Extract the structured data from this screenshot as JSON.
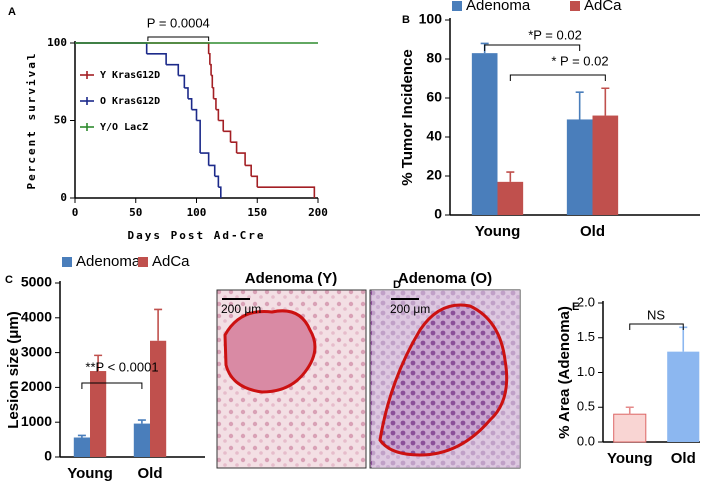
{
  "chart_data": [
    {
      "type": "line",
      "label": "A",
      "xlabel": "Days Post Ad-Cre",
      "ylabel": "Percent survival",
      "annotation": "P = 0.0004",
      "xlim": [
        0,
        200
      ],
      "xticks": [
        0,
        50,
        100,
        150,
        200
      ],
      "ylim": [
        0,
        100
      ],
      "yticks": [
        0,
        50,
        100
      ],
      "series": [
        {
          "name": "Y KrasG12D",
          "color": "#a31f24",
          "x": [
            0,
            110,
            111,
            112,
            113,
            114,
            116,
            118,
            122,
            128,
            133,
            140,
            145,
            150,
            197
          ],
          "values": [
            100,
            93,
            86,
            79,
            71,
            64,
            57,
            50,
            43,
            36,
            29,
            21,
            14,
            7,
            0
          ]
        },
        {
          "name": "O KrasG12D",
          "color": "#1c2a8a",
          "x": [
            0,
            59,
            75,
            85,
            90,
            93,
            96,
            100,
            103,
            110,
            115,
            118,
            120
          ],
          "values": [
            100,
            93,
            86,
            79,
            71,
            64,
            57,
            50,
            29,
            21,
            14,
            7,
            0
          ]
        },
        {
          "name": "Y/O LacZ",
          "color": "#2e8b2e",
          "x": [
            0,
            200
          ],
          "values": [
            100,
            100
          ]
        }
      ]
    },
    {
      "type": "bar",
      "label": "B",
      "ylabel": "% Tumor Incidence",
      "annotations": [
        "*P = 0.02",
        "* P = 0.02"
      ],
      "categories": [
        "Young",
        "Old"
      ],
      "ylim": [
        0,
        100
      ],
      "yticks": [
        0,
        20,
        40,
        60,
        80,
        100
      ],
      "series": [
        {
          "name": "Adenoma",
          "color": "#4a7ebb",
          "values": [
            83,
            49
          ],
          "errors": [
            5,
            14
          ]
        },
        {
          "name": "AdCa",
          "color": "#c0504d",
          "values": [
            17,
            51
          ],
          "errors": [
            5,
            14
          ]
        }
      ]
    },
    {
      "type": "bar",
      "label": "C",
      "ylabel": "Lesion size (μm)",
      "annotations": [
        "**P < 0.0001"
      ],
      "categories": [
        "Young",
        "Old"
      ],
      "ylim": [
        0,
        5000
      ],
      "yticks": [
        0,
        1000,
        2000,
        3000,
        4000,
        5000
      ],
      "series": [
        {
          "name": "Adenoma",
          "color": "#4a7ebb",
          "values": [
            560,
            960
          ],
          "errors": [
            60,
            100
          ]
        },
        {
          "name": "AdCa",
          "color": "#c0504d",
          "values": [
            2470,
            3340
          ],
          "errors": [
            450,
            900
          ]
        }
      ]
    },
    {
      "type": "bar",
      "label": "E",
      "ylabel": "% Area (Adenoma)",
      "annotations": [
        "NS"
      ],
      "categories": [
        "Young",
        "Old"
      ],
      "ylim": [
        0,
        2
      ],
      "yticks": [
        {
          "value": 0,
          "label": "0.0"
        },
        {
          "value": 0.5,
          "label": "0.5"
        },
        {
          "value": 1,
          "label": "1.0"
        },
        {
          "value": 1.5,
          "label": "1.5"
        },
        {
          "value": 2,
          "label": "2.0"
        }
      ],
      "series": [
        {
          "colors": [
            "#f9d5d3",
            "#8cb7f0"
          ],
          "values": [
            0.4,
            1.3
          ],
          "errors": [
            0.1,
            0.35
          ]
        }
      ]
    }
  ],
  "images": {
    "label": "D",
    "panels": [
      {
        "title": "Adenoma (Y)",
        "scale_bar": "200 μm"
      },
      {
        "title": "Adenoma (O)",
        "scale_bar": "200 μm"
      }
    ]
  }
}
